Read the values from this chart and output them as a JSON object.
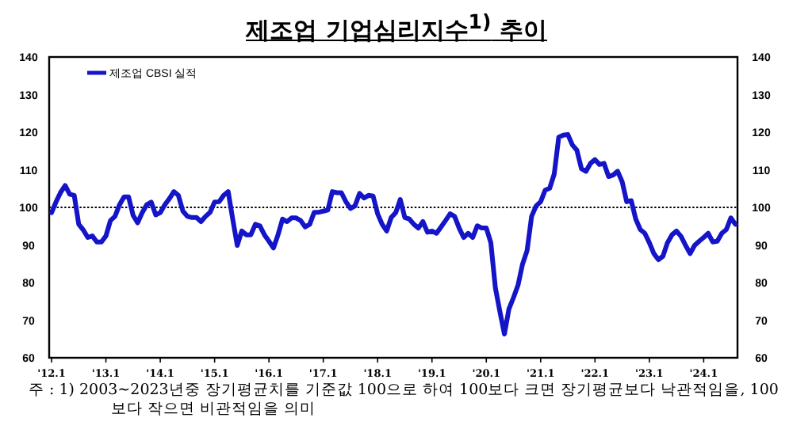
{
  "chart_data": {
    "type": "line",
    "title": "제조업 기업심리지수$^{1)}$ 추이",
    "annotations": [
      "주 : 1) 2003~2023년중 장기평균치를 기준값 100으로 하여 100보다 크면 장기평균보다 낙관적임을, 100보다 작으면 비관적임을 의미"
    ],
    "xlim": [
      "2011-12-15",
      "2024-08-15"
    ],
    "xticks": [
      {
        "value": "2012-01",
        "label": "'12.1"
      },
      {
        "value": "2013-01",
        "label": "'13.1"
      },
      {
        "value": "2014-01",
        "label": "'14.1"
      },
      {
        "value": "2015-01",
        "label": "'15.1"
      },
      {
        "value": "2016-01",
        "label": "'16.1"
      },
      {
        "value": "2017-01",
        "label": "'17.1"
      },
      {
        "value": "2018-01",
        "label": "'18.1"
      },
      {
        "value": "2019-01",
        "label": "'19.1"
      },
      {
        "value": "2020-01",
        "label": "'20.1"
      },
      {
        "value": "2021-01",
        "label": "'21.1"
      },
      {
        "value": "2022-01",
        "label": "'22.1"
      },
      {
        "value": "2023-01",
        "label": "'23.1"
      },
      {
        "value": "2024-01",
        "label": "'24.1"
      }
    ],
    "ylim": [
      60,
      140
    ],
    "yticks": [
      60,
      70,
      80,
      90,
      100,
      110,
      120,
      130,
      140
    ],
    "y2lim": [
      60,
      140
    ],
    "y2ticks": [
      60,
      70,
      80,
      90,
      100,
      110,
      120,
      130,
      140
    ],
    "legend": "top left",
    "ref_lines": [
      {
        "axis": "y",
        "value": 100,
        "line_style": "dotted",
        "color": "#000000"
      }
    ],
    "x": [
      "2012-01",
      "2012-02",
      "2012-03",
      "2012-04",
      "2012-05",
      "2012-06",
      "2012-07",
      "2012-08",
      "2012-09",
      "2012-10",
      "2012-11",
      "2012-12",
      "2013-01",
      "2013-02",
      "2013-03",
      "2013-04",
      "2013-05",
      "2013-06",
      "2013-07",
      "2013-08",
      "2013-09",
      "2013-10",
      "2013-11",
      "2013-12",
      "2014-01",
      "2014-02",
      "2014-03",
      "2014-04",
      "2014-05",
      "2014-06",
      "2014-07",
      "2014-08",
      "2014-09",
      "2014-10",
      "2014-11",
      "2014-12",
      "2015-01",
      "2015-02",
      "2015-03",
      "2015-04",
      "2015-05",
      "2015-06",
      "2015-07",
      "2015-08",
      "2015-09",
      "2015-10",
      "2015-11",
      "2015-12",
      "2016-01",
      "2016-02",
      "2016-03",
      "2016-04",
      "2016-05",
      "2016-06",
      "2016-07",
      "2016-08",
      "2016-09",
      "2016-10",
      "2016-11",
      "2016-12",
      "2017-01",
      "2017-02",
      "2017-03",
      "2017-04",
      "2017-05",
      "2017-06",
      "2017-07",
      "2017-08",
      "2017-09",
      "2017-10",
      "2017-11",
      "2017-12",
      "2018-01",
      "2018-02",
      "2018-03",
      "2018-04",
      "2018-05",
      "2018-06",
      "2018-07",
      "2018-08",
      "2018-09",
      "2018-10",
      "2018-11",
      "2018-12",
      "2019-01",
      "2019-02",
      "2019-03",
      "2019-04",
      "2019-05",
      "2019-06",
      "2019-07",
      "2019-08",
      "2019-09",
      "2019-10",
      "2019-11",
      "2019-12",
      "2020-01",
      "2020-02",
      "2020-03",
      "2020-04",
      "2020-05",
      "2020-06",
      "2020-07",
      "2020-08",
      "2020-09",
      "2020-10",
      "2020-11",
      "2020-12",
      "2021-01",
      "2021-02",
      "2021-03",
      "2021-04",
      "2021-05",
      "2021-06",
      "2021-07",
      "2021-08",
      "2021-09",
      "2021-10",
      "2021-11",
      "2021-12",
      "2022-01",
      "2022-02",
      "2022-03",
      "2022-04",
      "2022-05",
      "2022-06",
      "2022-07",
      "2022-08",
      "2022-09",
      "2022-10",
      "2022-11",
      "2022-12",
      "2023-01",
      "2023-02",
      "2023-03",
      "2023-04",
      "2023-05",
      "2023-06",
      "2023-07",
      "2023-08",
      "2023-09",
      "2023-10",
      "2023-11",
      "2023-12",
      "2024-01",
      "2024-02",
      "2024-03",
      "2024-04",
      "2024-05",
      "2024-06",
      "2024-07",
      "2024-08"
    ],
    "series": [
      {
        "name": "제조업 CBSI 실적",
        "color": "#1414c8",
        "values": [
          98.6,
          101.5,
          104,
          105.8,
          103.5,
          103.2,
          95.5,
          94,
          92,
          92.4,
          90.8,
          90.8,
          92.4,
          96.5,
          97.6,
          100.7,
          102.8,
          102.8,
          97.9,
          95.9,
          98.6,
          100.7,
          101.4,
          98,
          98.6,
          100.7,
          102.3,
          104.2,
          103.2,
          99,
          97.6,
          97.3,
          97.3,
          96.2,
          97.6,
          98.7,
          101.4,
          101.5,
          103.2,
          104.2,
          96.9,
          89.9,
          93.7,
          92.7,
          92.7,
          95.5,
          95.1,
          92.7,
          91,
          89.2,
          92.7,
          96.9,
          96.2,
          97.2,
          97.2,
          96.5,
          94.8,
          95.5,
          98.7,
          98.7,
          99,
          99.3,
          104.2,
          103.9,
          103.9,
          101.5,
          99.7,
          100.4,
          103.7,
          102.5,
          103.2,
          103,
          98.3,
          95.5,
          93.7,
          97.3,
          98.6,
          102.1,
          97.3,
          96.9,
          95.5,
          94.5,
          96.2,
          93.4,
          93.7,
          93.1,
          94.8,
          96.5,
          98.3,
          97.6,
          94.5,
          92,
          93.1,
          92,
          95.1,
          94.5,
          94.5,
          90.6,
          78.6,
          72.3,
          66.3,
          73,
          76,
          79.3,
          84.9,
          88.5,
          97.6,
          100.4,
          101.5,
          104.6,
          105.1,
          108.9,
          118.7,
          119.2,
          119.4,
          116.6,
          115.2,
          110.3,
          109.6,
          111.7,
          112.7,
          111.4,
          111.7,
          108.2,
          108.6,
          109.6,
          106.8,
          101.5,
          101.8,
          96.9,
          94.1,
          93.1,
          90.6,
          87.7,
          86.1,
          87,
          90.6,
          92.7,
          93.7,
          92.3,
          89.9,
          87.7,
          89.9,
          91,
          92,
          93.1,
          90.8,
          91,
          93.1,
          94.1,
          97.2,
          95.5
        ]
      }
    ]
  }
}
